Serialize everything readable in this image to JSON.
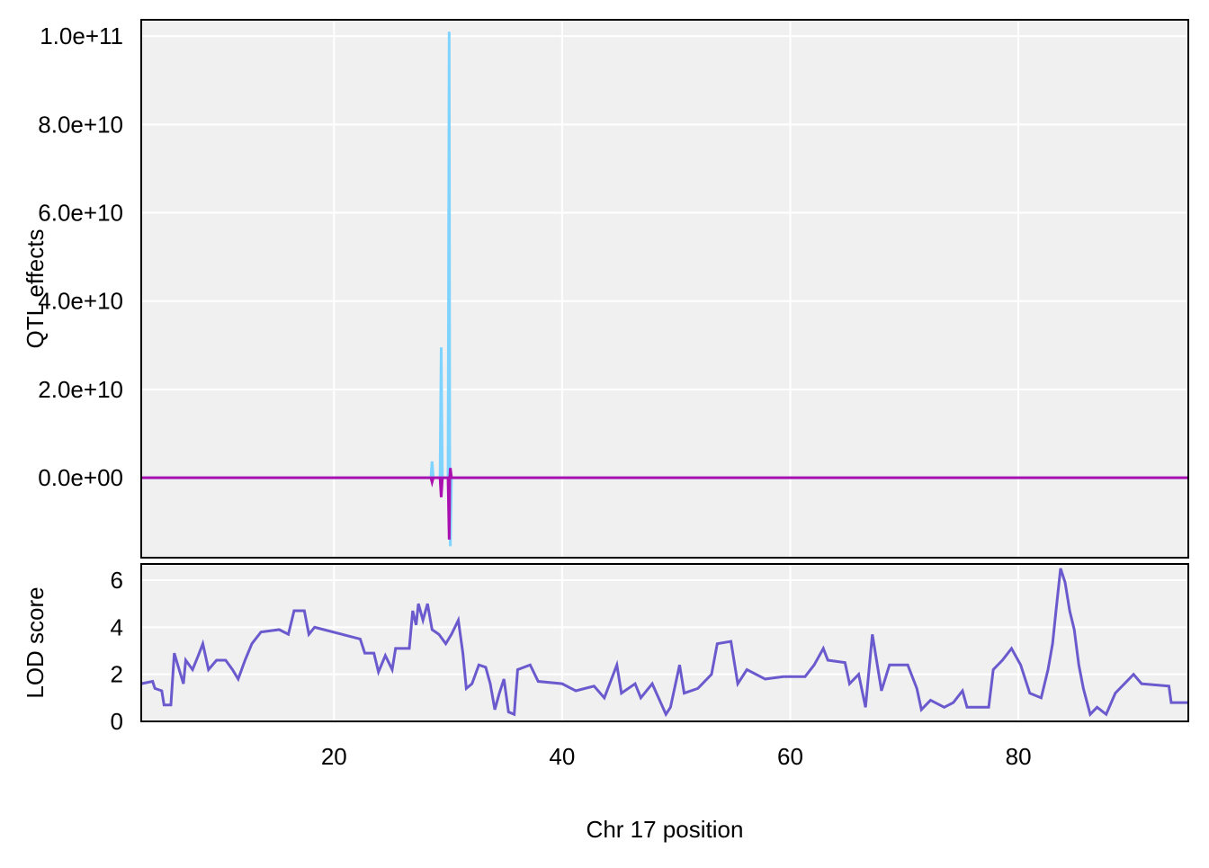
{
  "chart_data": [
    {
      "type": "line",
      "ylabel": "QTL effects",
      "x": [
        3.1,
        27,
        28.5,
        28.6,
        28.7,
        29.3,
        29.4,
        29.5,
        30.0,
        30.1,
        30.15,
        30.2,
        30.3,
        94.9
      ],
      "series": [
        {
          "color": "#7fd3ff",
          "values": [
            0,
            0,
            0,
            3700000000,
            0,
            0,
            29500000000,
            0,
            0,
            101000000000,
            0,
            -15500000000,
            0,
            0
          ]
        },
        {
          "color": "#aa10b0",
          "values": [
            0,
            0,
            0,
            -1000000000,
            0,
            0,
            -4400000000,
            0,
            0,
            -14000000000,
            0,
            2200000000,
            0,
            0
          ]
        }
      ],
      "xlim": [
        3.1,
        94.9
      ],
      "xticks": [
        20,
        40,
        60,
        80
      ],
      "ylim": [
        -18100000000,
        103700000000
      ],
      "yticks": [
        {
          "value": 0,
          "label": "0.0e+00"
        },
        {
          "value": 20000000000,
          "label": "2.0e+10"
        },
        {
          "value": 40000000000,
          "label": "4.0e+10"
        },
        {
          "value": 60000000000,
          "label": "6.0e+10"
        },
        {
          "value": 80000000000,
          "label": "8.0e+10"
        },
        {
          "value": 100000000000,
          "label": "1.0e+11"
        }
      ],
      "grid": true
    },
    {
      "type": "line",
      "xlabel": "Chr 17 position",
      "ylabel": "LOD score",
      "x": [
        3.1,
        4.1,
        4.3,
        4.9,
        5.1,
        5.7,
        6.0,
        6.3,
        6.8,
        7.0,
        7.6,
        8.1,
        8.5,
        9.0,
        9.7,
        10.5,
        11.1,
        11.6,
        12.2,
        12.8,
        13.6,
        15.2,
        16.0,
        16.5,
        17.4,
        17.8,
        18.3,
        20.7,
        22.3,
        22.7,
        23.5,
        23.9,
        24.5,
        25.1,
        25.4,
        26.6,
        26.9,
        27.2,
        27.4,
        27.8,
        28.2,
        28.6,
        29.2,
        29.8,
        30.3,
        30.9,
        31.3,
        31.6,
        32.1,
        32.7,
        33.3,
        33.7,
        34.1,
        34.5,
        34.9,
        35.3,
        35.8,
        36.1,
        37.2,
        37.9,
        40.0,
        41.2,
        42.8,
        43.7,
        44.8,
        45.2,
        46.4,
        46.9,
        47.9,
        49.1,
        49.5,
        50.3,
        50.7,
        51.9,
        53.1,
        53.6,
        54.8,
        55.4,
        56.2,
        57.8,
        59.4,
        61.3,
        62.1,
        62.9,
        63.3,
        64.8,
        65.2,
        66.0,
        66.6,
        67.2,
        68.0,
        68.7,
        69.5,
        70.3,
        71.1,
        71.5,
        72.3,
        73.5,
        74.3,
        75.1,
        75.5,
        77.4,
        77.8,
        78.6,
        79.4,
        80.2,
        81.0,
        82.0,
        82.6,
        83.0,
        83.3,
        83.7,
        84.1,
        84.5,
        84.9,
        85.3,
        85.7,
        86.3,
        86.9,
        87.7,
        88.5,
        89.3,
        90.1,
        90.8,
        93.2,
        93.4,
        94.9
      ],
      "series": [
        {
          "color": "#6a5acd",
          "values": [
            1.6,
            1.7,
            1.4,
            1.3,
            0.7,
            0.7,
            2.9,
            2.4,
            1.6,
            2.6,
            2.2,
            2.8,
            3.3,
            2.2,
            2.6,
            2.6,
            2.2,
            1.8,
            2.6,
            3.3,
            3.8,
            3.9,
            3.7,
            4.7,
            4.7,
            3.7,
            4.0,
            3.7,
            3.5,
            2.9,
            2.9,
            2.1,
            2.8,
            2.2,
            3.1,
            3.1,
            4.7,
            4.1,
            5.0,
            4.3,
            5.0,
            3.9,
            3.7,
            3.3,
            3.7,
            4.3,
            2.9,
            1.4,
            1.6,
            2.4,
            2.3,
            1.6,
            0.5,
            1.2,
            1.8,
            0.4,
            0.3,
            2.2,
            2.4,
            1.7,
            1.6,
            1.3,
            1.5,
            1.0,
            2.4,
            1.2,
            1.6,
            1.0,
            1.6,
            0.3,
            0.6,
            2.4,
            1.2,
            1.4,
            2.0,
            3.3,
            3.4,
            1.6,
            2.2,
            1.8,
            1.9,
            1.9,
            2.4,
            3.1,
            2.6,
            2.5,
            1.6,
            2.0,
            0.6,
            3.7,
            1.3,
            2.4,
            2.4,
            2.4,
            1.4,
            0.5,
            0.9,
            0.6,
            0.8,
            1.3,
            0.6,
            0.6,
            2.2,
            2.6,
            3.1,
            2.4,
            1.2,
            1.0,
            2.2,
            3.3,
            4.7,
            6.5,
            5.9,
            4.7,
            3.9,
            2.4,
            1.4,
            0.3,
            0.6,
            0.3,
            1.2,
            1.6,
            2.0,
            1.6,
            1.5,
            0.8,
            0.8
          ]
        }
      ],
      "xlim": [
        3.1,
        94.9
      ],
      "xticks": [
        20,
        40,
        60,
        80
      ],
      "ylim": [
        0,
        6.69
      ],
      "yticks": [
        0,
        2,
        4,
        6
      ],
      "grid": true
    }
  ]
}
